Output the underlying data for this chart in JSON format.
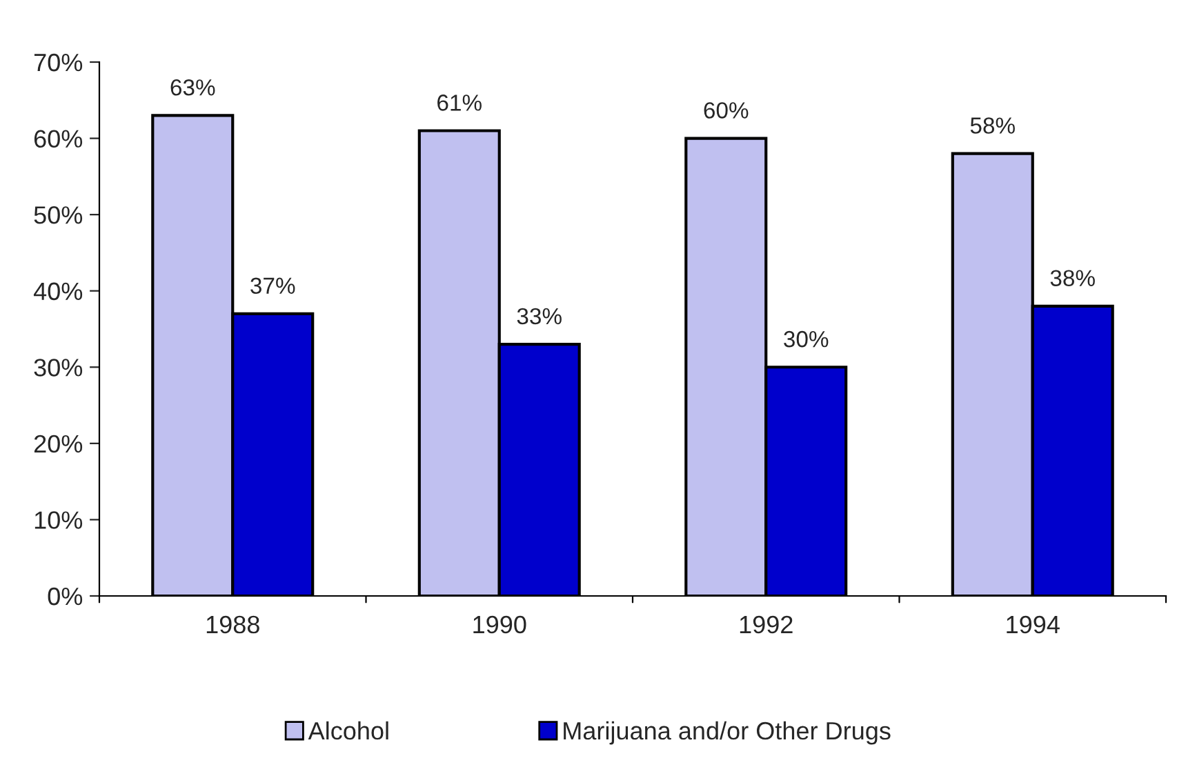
{
  "chart_data": {
    "type": "bar",
    "categories": [
      "1988",
      "1990",
      "1992",
      "1994"
    ],
    "series": [
      {
        "name": "Alcohol",
        "color": "#c0c0f0",
        "values": [
          63,
          61,
          60,
          58
        ],
        "value_labels": [
          "63%",
          "61%",
          "60%",
          "58%"
        ]
      },
      {
        "name": "Marijuana and/or Other Drugs",
        "color": "#0000cc",
        "values": [
          37,
          33,
          30,
          38
        ],
        "value_labels": [
          "37%",
          "33%",
          "30%",
          "38%"
        ]
      }
    ],
    "ylim": [
      0,
      70
    ],
    "yticks": [
      {
        "value": 0,
        "label": "0%"
      },
      {
        "value": 10,
        "label": "10%"
      },
      {
        "value": 20,
        "label": "20%"
      },
      {
        "value": 30,
        "label": "30%"
      },
      {
        "value": 40,
        "label": "40%"
      },
      {
        "value": 50,
        "label": "50%"
      },
      {
        "value": 60,
        "label": "60%"
      },
      {
        "value": 70,
        "label": "70%"
      }
    ],
    "grid": false,
    "legend": "bottom"
  }
}
